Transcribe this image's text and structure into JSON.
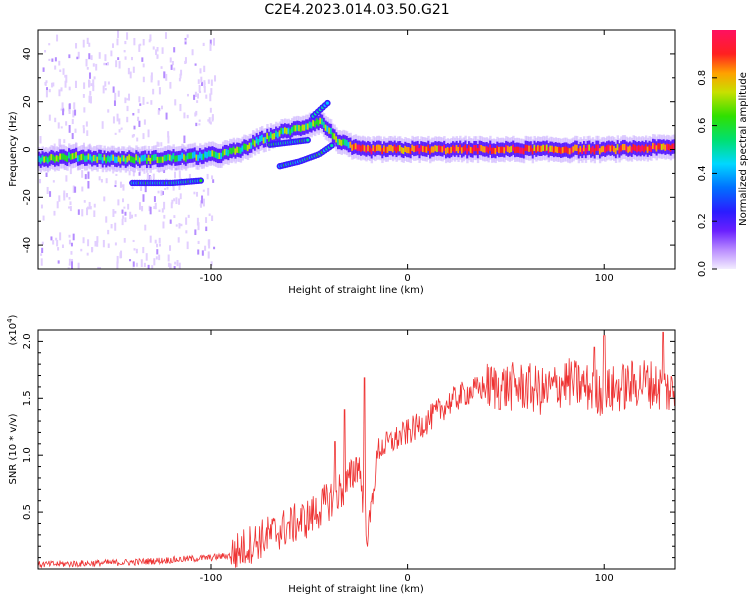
{
  "figure_title": "C2E4.2023.014.03.50.G21",
  "colors": {
    "snr_line": "#ee3333",
    "colormap": [
      "#f0e6ff",
      "#c9a6ff",
      "#8a3cff",
      "#3b1cff",
      "#1060ff",
      "#00c8ff",
      "#00e0a0",
      "#20e020",
      "#c0e000",
      "#ffa000",
      "#ff2020",
      "#ff1060"
    ]
  },
  "chart_data": [
    {
      "type": "heatmap",
      "title": "C2E4.2023.014.03.50.G21",
      "xlabel": "Height of straight line (km)",
      "ylabel": "Frequency (Hz)",
      "xlim": [
        -188,
        136
      ],
      "ylim": [
        -50,
        50
      ],
      "x_ticks": [
        "-100",
        "0",
        "100"
      ],
      "y_ticks": [
        "40",
        "20",
        "0",
        "-20",
        "-40"
      ],
      "colorbar": {
        "label": "Normalized spectral amplitude",
        "range": [
          0,
          1
        ],
        "ticks": [
          "0.0",
          "0.2",
          "0.4",
          "0.6",
          "0.8"
        ]
      },
      "main_trace": [
        [
          -188,
          -4
        ],
        [
          -170,
          -3
        ],
        [
          -150,
          -4
        ],
        [
          -130,
          -4
        ],
        [
          -110,
          -3
        ],
        [
          -95,
          -2
        ],
        [
          -85,
          0
        ],
        [
          -75,
          4
        ],
        [
          -65,
          7
        ],
        [
          -55,
          9
        ],
        [
          -45,
          12
        ],
        [
          -35,
          3
        ],
        [
          -25,
          0
        ],
        [
          0,
          0
        ],
        [
          50,
          0
        ],
        [
          100,
          0
        ],
        [
          136,
          1
        ]
      ],
      "secondary_traces": [
        [
          [
            -48,
            14
          ],
          [
            -44,
            17
          ],
          [
            -40,
            20
          ]
        ],
        [
          [
            -70,
            2
          ],
          [
            -60,
            3
          ],
          [
            -50,
            4
          ]
        ],
        [
          [
            -65,
            -7
          ],
          [
            -55,
            -5
          ],
          [
            -45,
            -2
          ],
          [
            -38,
            2
          ]
        ],
        [
          [
            -140,
            -14
          ],
          [
            -120,
            -14
          ],
          [
            -105,
            -13
          ]
        ]
      ]
    },
    {
      "type": "line",
      "xlabel": "Height of straight line (km)",
      "ylabel": "SNR (10 * v/v)",
      "y_multiplier": "(x10",
      "y_multiplier_exp": "4",
      "y_multiplier_close": ")",
      "xlim": [
        -188,
        136
      ],
      "ylim": [
        0,
        2.1
      ],
      "x_ticks": [
        "-100",
        "0",
        "100"
      ],
      "y_ticks": [
        "0.5",
        "1.0",
        "1.5",
        "2.0"
      ],
      "series": [
        {
          "values": [
            [
              -188,
              0.04
            ],
            [
              -160,
              0.05
            ],
            [
              -140,
              0.06
            ],
            [
              -120,
              0.08
            ],
            [
              -100,
              0.1
            ],
            [
              -90,
              0.12
            ],
            [
              -80,
              0.22
            ],
            [
              -70,
              0.3
            ],
            [
              -60,
              0.38
            ],
            [
              -50,
              0.45
            ],
            [
              -40,
              0.6
            ],
            [
              -30,
              0.75
            ],
            [
              -25,
              0.95
            ],
            [
              -20,
              0.3
            ],
            [
              -15,
              1.05
            ],
            [
              -10,
              1.1
            ],
            [
              -5,
              1.15
            ],
            [
              0,
              1.2
            ],
            [
              10,
              1.3
            ],
            [
              20,
              1.45
            ],
            [
              30,
              1.55
            ],
            [
              40,
              1.6
            ],
            [
              50,
              1.6
            ],
            [
              60,
              1.6
            ],
            [
              70,
              1.55
            ],
            [
              80,
              1.65
            ],
            [
              90,
              1.6
            ],
            [
              100,
              1.55
            ],
            [
              110,
              1.6
            ],
            [
              120,
              1.65
            ],
            [
              136,
              1.55
            ]
          ],
          "spikes": [
            [
              -22,
              1.68
            ],
            [
              -32,
              1.4
            ],
            [
              -37,
              1.12
            ],
            [
              100,
              2.05
            ],
            [
              95,
              1.95
            ],
            [
              130,
              2.08
            ]
          ]
        }
      ]
    }
  ]
}
